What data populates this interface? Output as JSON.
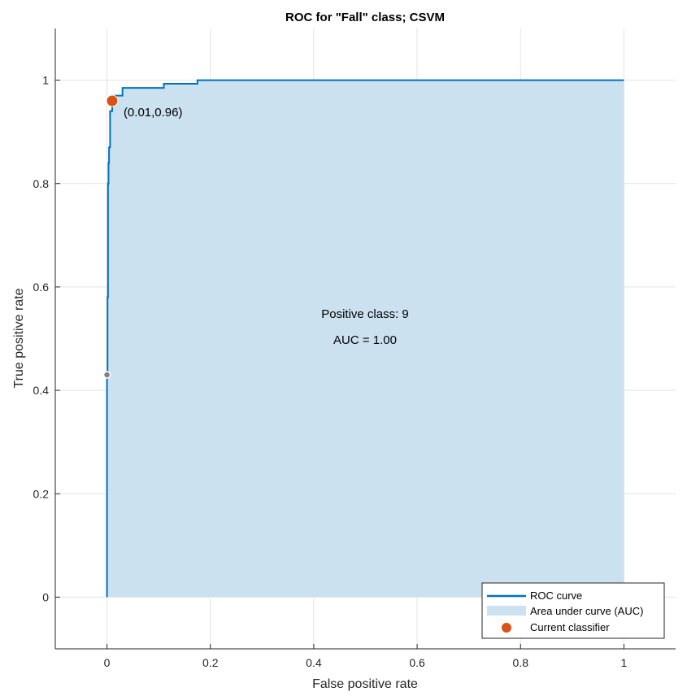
{
  "chart_data": {
    "type": "line",
    "title": "ROC for \"Fall\" class; CSVM",
    "xlabel": "False positive rate",
    "ylabel": "True positive rate",
    "xlim": [
      -0.1,
      1.1
    ],
    "ylim": [
      -0.1,
      1.1
    ],
    "xticks": [
      0,
      0.2,
      0.4,
      0.6,
      0.8,
      1
    ],
    "yticks": [
      0,
      0.2,
      0.4,
      0.6,
      0.8,
      1
    ],
    "xtick_labels": [
      "0",
      "0.2",
      "0.4",
      "0.6",
      "0.8",
      "1"
    ],
    "ytick_labels": [
      "0",
      "0.2",
      "0.4",
      "0.6",
      "0.8",
      "1"
    ],
    "grid": true,
    "legend_position": "bottom-right",
    "colors": {
      "roc": "#0072BD",
      "auc": "#cce1ef",
      "classifier": "#D95319",
      "marker_gray": "#7f7f7f"
    },
    "series": [
      {
        "name": "ROC curve",
        "x": [
          0,
          0,
          0.001,
          0.001,
          0.002,
          0.002,
          0.003,
          0.003,
          0.004,
          0.004,
          0.006,
          0.006,
          0.01,
          0.01,
          0.03,
          0.03,
          0.11,
          0.11,
          0.175,
          0.175,
          1
        ],
        "y": [
          0,
          0.43,
          0.43,
          0.58,
          0.58,
          0.8,
          0.8,
          0.84,
          0.84,
          0.87,
          0.87,
          0.94,
          0.94,
          0.97,
          0.97,
          0.985,
          0.985,
          0.993,
          0.993,
          1.0,
          1.0
        ]
      }
    ],
    "area_label": "Area under curve (AUC)",
    "current_classifier": {
      "name": "Current classifier",
      "x": 0.01,
      "y": 0.96,
      "label": "(0.01,0.96)"
    },
    "gray_marker": {
      "x": 0,
      "y": 0.43
    },
    "annotations": {
      "positive_class": "Positive class: 9",
      "auc": "AUC = 1.00"
    }
  }
}
